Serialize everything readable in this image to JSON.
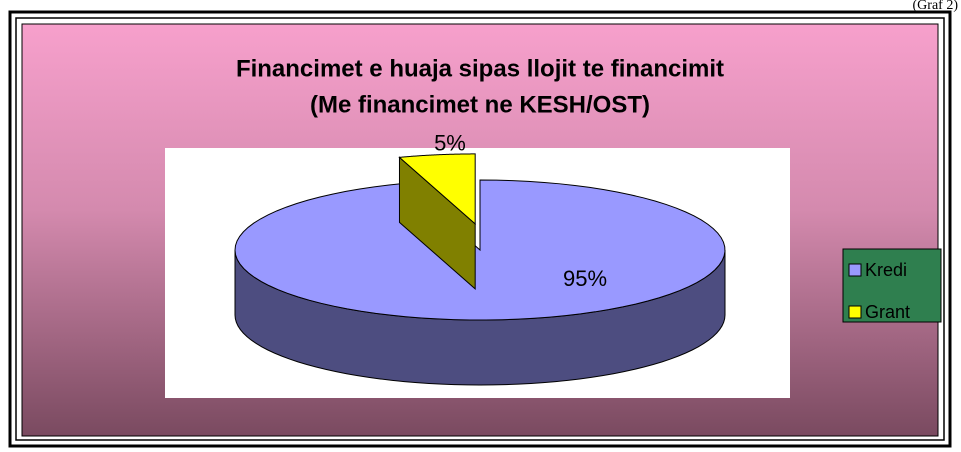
{
  "caption": "(Graf 2)",
  "chart_data": {
    "type": "pie",
    "title": [
      "Financimet e huaja sipas llojit te financimit",
      "(Me financimet ne KESH/OST)"
    ],
    "categories": [
      "Kredi",
      "Grant"
    ],
    "values": [
      95,
      5
    ],
    "value_labels": [
      "95%",
      "5%"
    ],
    "colors": [
      "#9999ff",
      "#ffff00"
    ],
    "legend": "right"
  }
}
